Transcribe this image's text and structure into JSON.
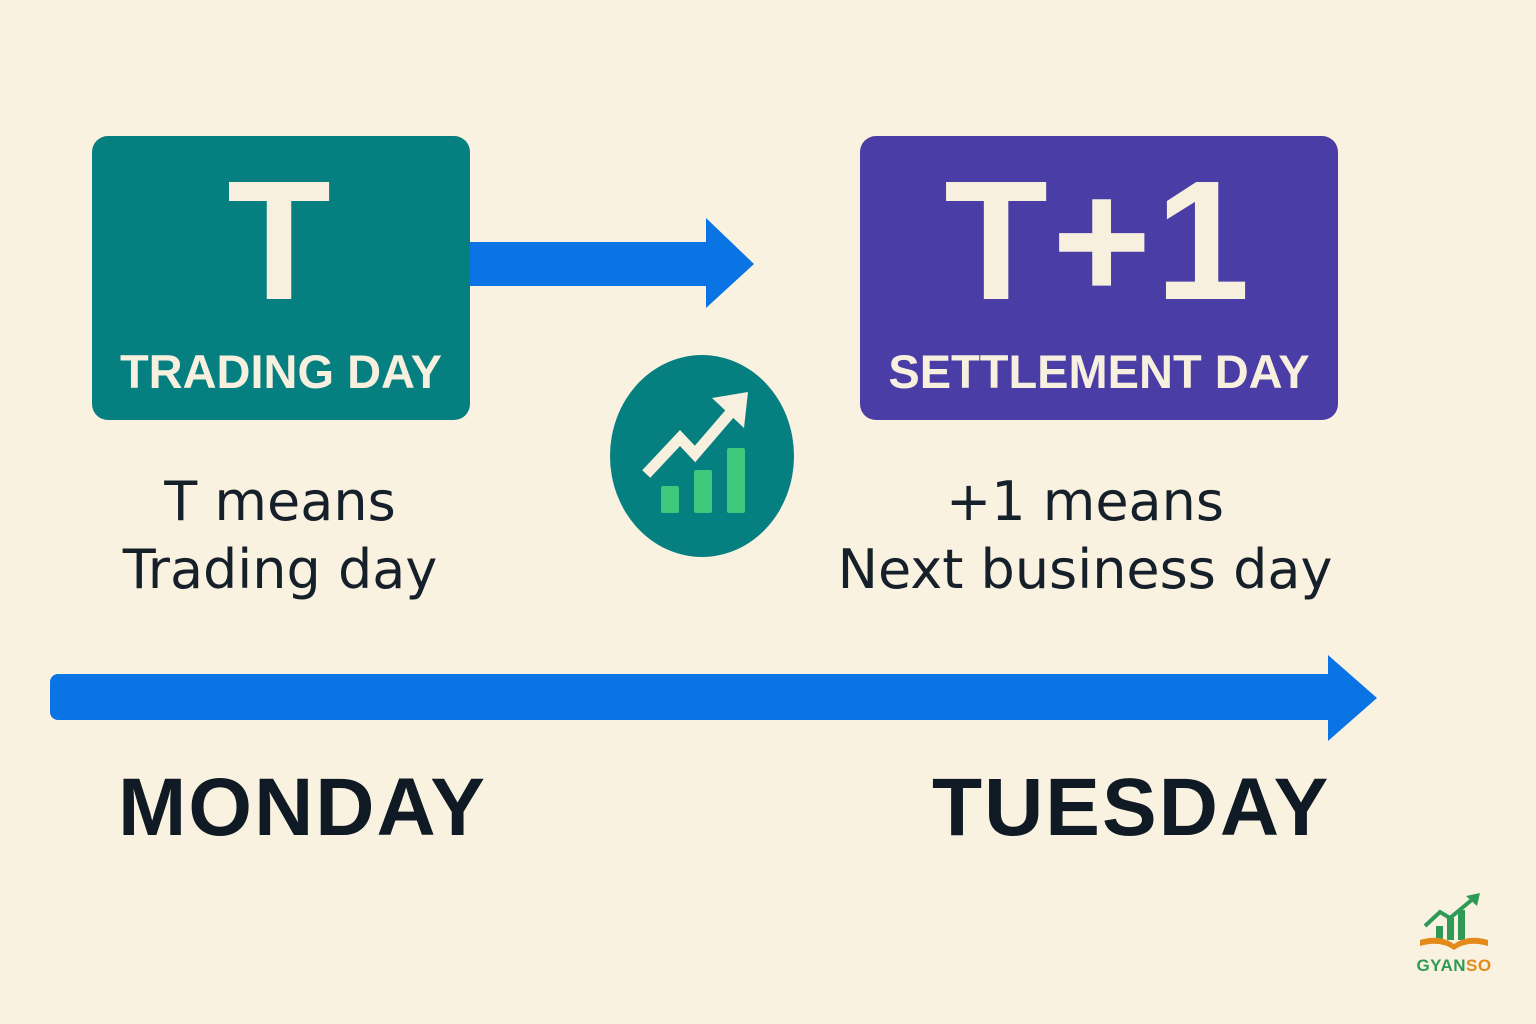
{
  "trading_box": {
    "big": "T",
    "label": "TRADING DAY"
  },
  "settlement_box": {
    "big": "T+1",
    "label": "SETTLEMENT DAY"
  },
  "captions": {
    "left_line1": "T means",
    "left_line2": "Trading day",
    "right_line1": "+1 means",
    "right_line2": "Next business day"
  },
  "timeline": {
    "start_day": "MONDAY",
    "end_day": "TUESDAY"
  },
  "logo": {
    "text_part1": "GYAN",
    "text_part2": "SO"
  },
  "icons": {
    "center": "growth-chart-icon",
    "logo": "growth-book-logo-icon"
  },
  "colors": {
    "background": "#faf2e0",
    "trading_box": "#057f80",
    "settlement_box": "#4b3da6",
    "arrow": "#0a74e4",
    "chart_bars": "#3dc87c"
  }
}
